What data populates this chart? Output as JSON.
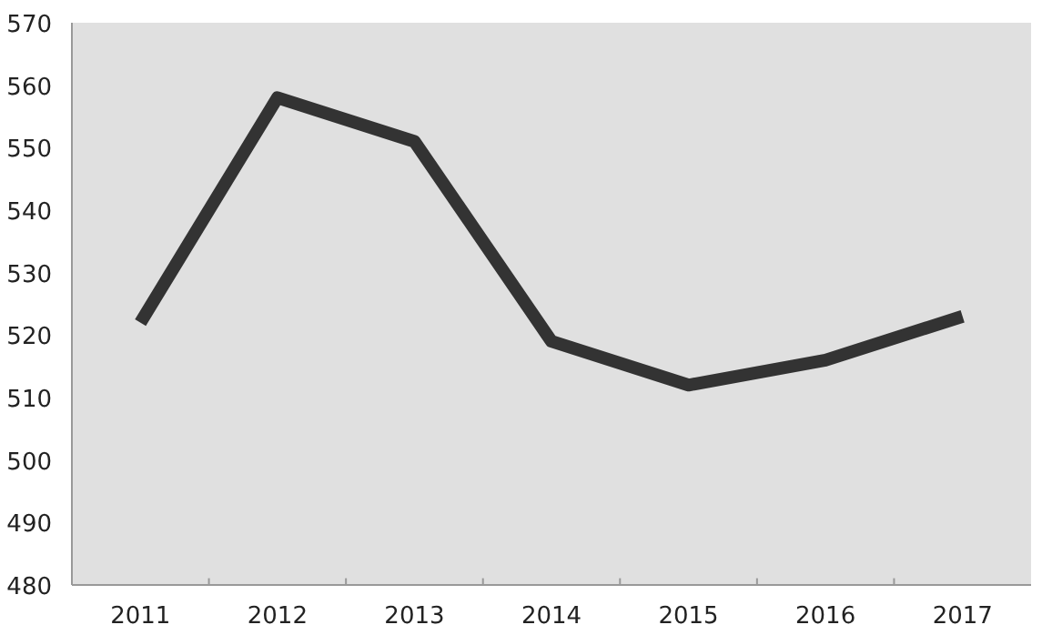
{
  "chart_data": {
    "type": "line",
    "categories": [
      "2011",
      "2012",
      "2013",
      "2014",
      "2015",
      "2016",
      "2017"
    ],
    "series": [
      {
        "color": "#333333",
        "values": [
          522,
          558,
          551,
          519,
          512,
          516,
          523
        ]
      }
    ],
    "ylim": [
      480,
      570
    ],
    "yticks": [
      480,
      490,
      500,
      510,
      520,
      530,
      540,
      550,
      560,
      570
    ],
    "marker": "none",
    "line_style": "solid"
  }
}
